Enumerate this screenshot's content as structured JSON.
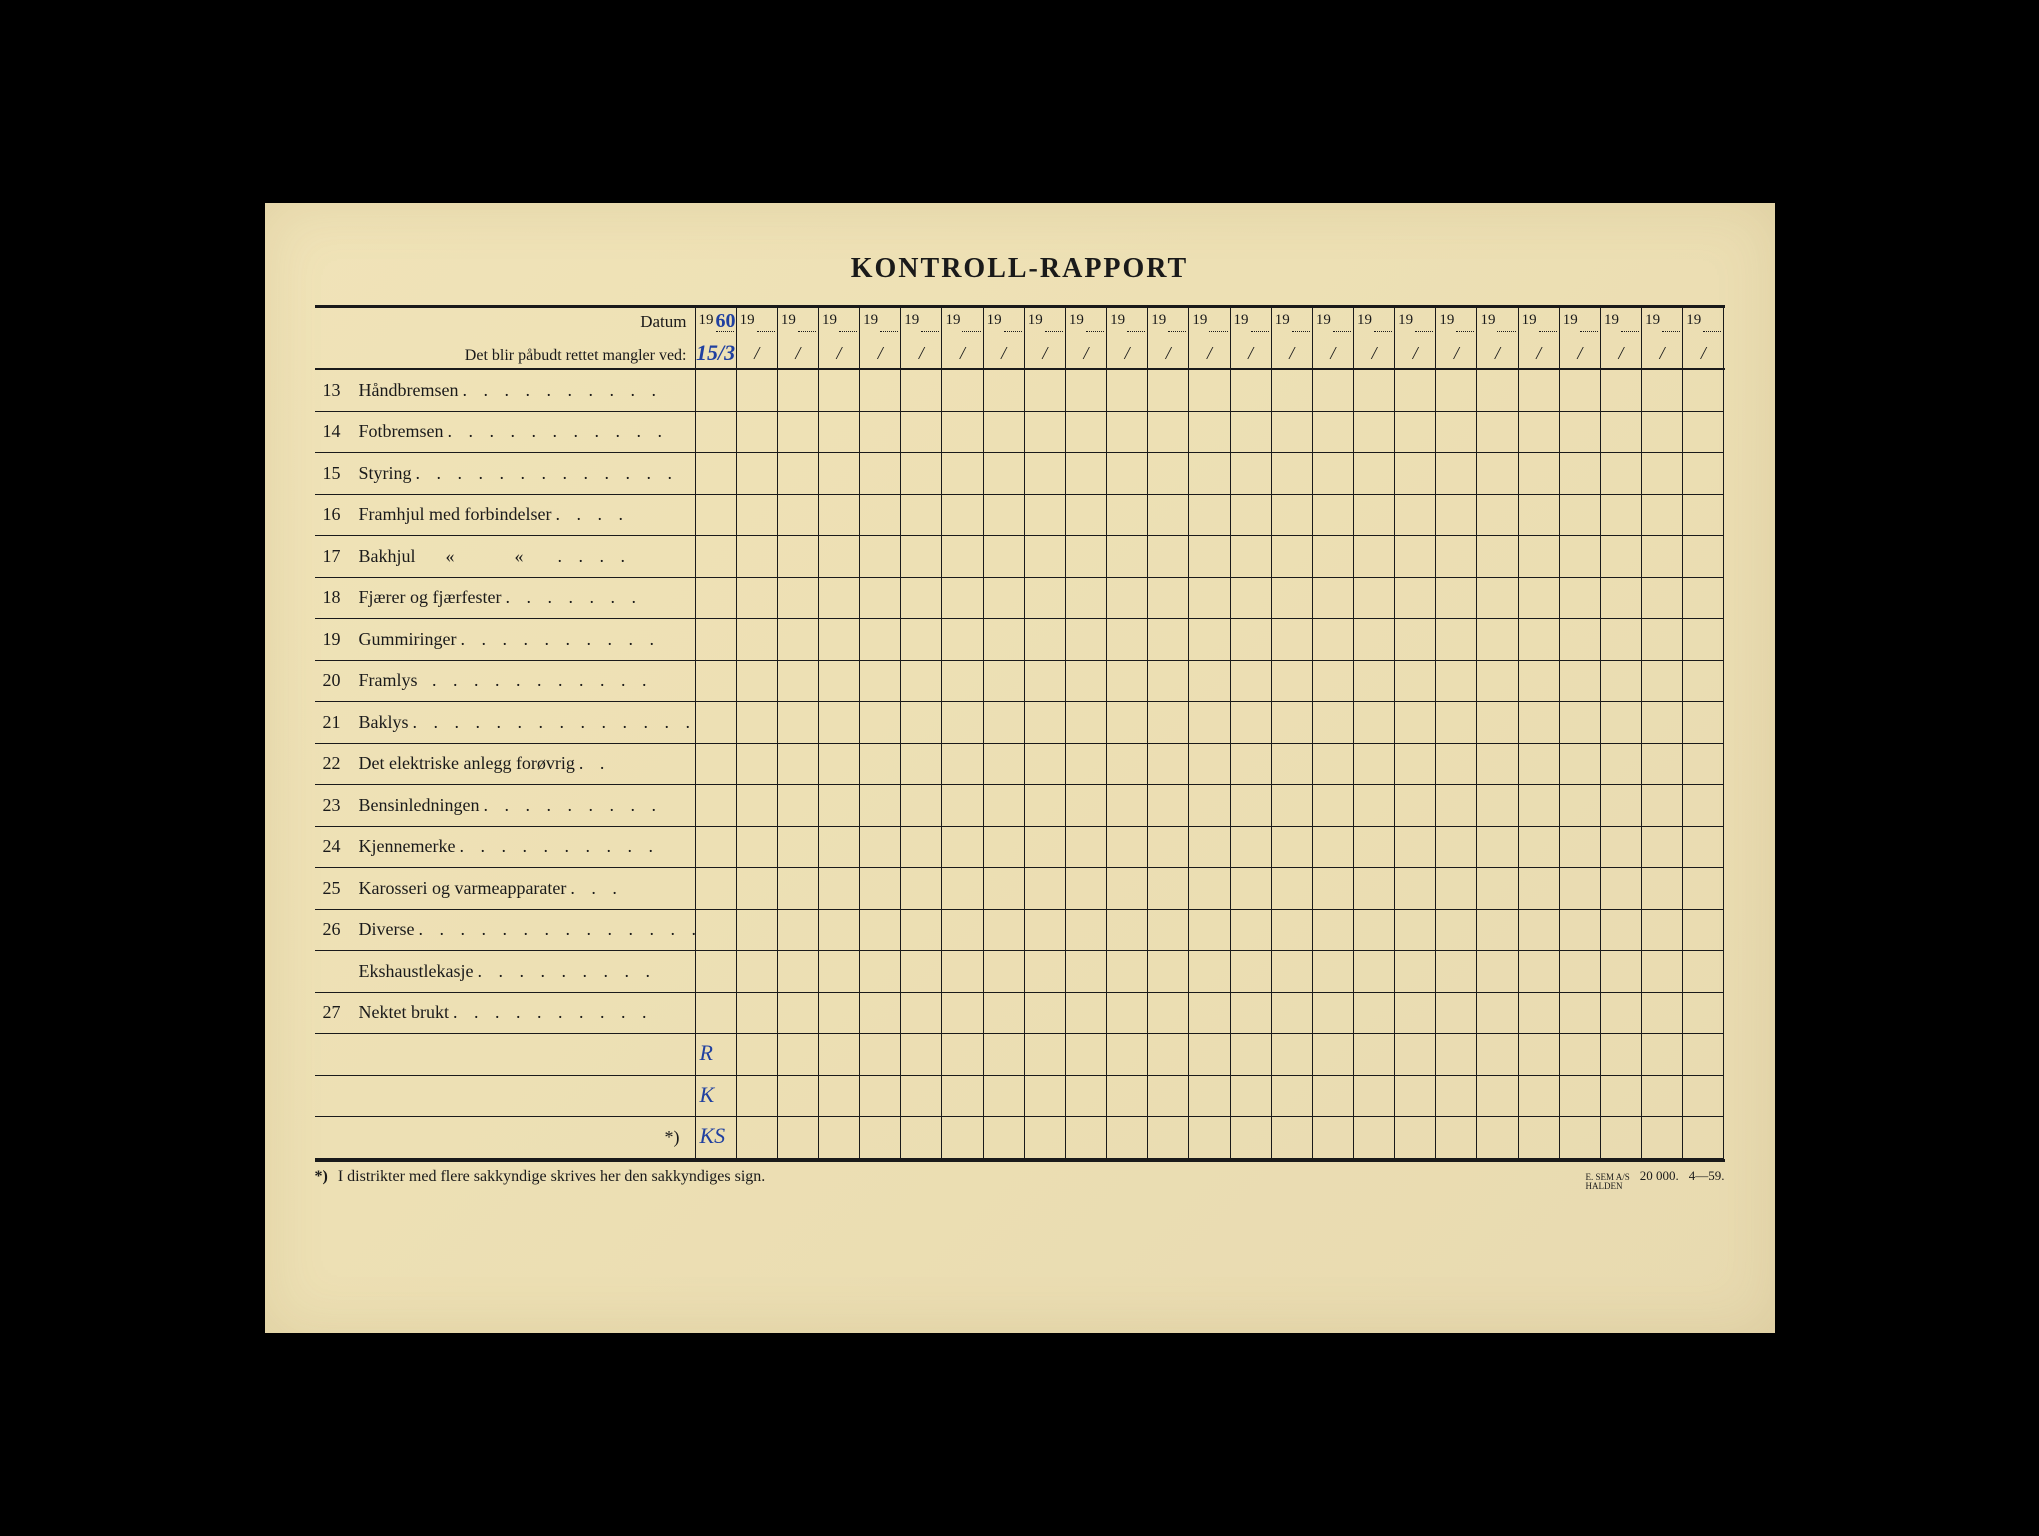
{
  "title": "KONTROLL-RAPPORT",
  "header": {
    "datum_label": "Datum",
    "mangler_label": "Det blir påbudt rettet mangler ved:",
    "year_prefix": "19",
    "num_year_cols": 25,
    "handwritten_year": "60",
    "handwritten_date": "15/3",
    "slash": "/"
  },
  "items": [
    {
      "num": "13",
      "label": "Håndbremsen",
      "dots": ". . . . . . . . . ."
    },
    {
      "num": "14",
      "label": "Fotbremsen",
      "dots": ". . . . . . . . . . ."
    },
    {
      "num": "15",
      "label": "Styring",
      "dots": ". . . . . . . . . . . . ."
    },
    {
      "num": "16",
      "label": "Framhjul med forbindelser",
      "dots": ". . . ."
    },
    {
      "num": "17",
      "label": "Bakhjul",
      "ditto1": "«",
      "ditto2": "«",
      "dots": ". . . ."
    },
    {
      "num": "18",
      "label": "Fjærer og fjærfester",
      "dots": ". . . . . . ."
    },
    {
      "num": "19",
      "label": "Gummiringer",
      "dots": ". . . . . . . . . ."
    },
    {
      "num": "20",
      "label": "Framlys",
      "dots": "  . . . . . . . . . . ."
    },
    {
      "num": "21",
      "label": "Baklys",
      "dots": ". . . . . . . . . . . . . ."
    },
    {
      "num": "22",
      "label": "Det elektriske anlegg forøvrig",
      "dots": ". ."
    },
    {
      "num": "23",
      "label": "Bensinledningen",
      "dots": ". . . . . . . . ."
    },
    {
      "num": "24",
      "label": "Kjennemerke",
      "dots": ". . . . . . . . . ."
    },
    {
      "num": "25",
      "label": "Karosseri og varmeapparater",
      "dots": ". . ."
    },
    {
      "num": "26",
      "label": "Diverse",
      "dots": ". . . . . . . . . . . . . ."
    },
    {
      "num": "",
      "label": "Ekshaustlekasje",
      "dots": ". . . . . . . . ."
    },
    {
      "num": "27",
      "label": "Nektet brukt",
      "dots": ". . . . . . . . . ."
    },
    {
      "num": "",
      "label": "",
      "dots": "",
      "sig": "R"
    },
    {
      "num": "",
      "label": "",
      "dots": "",
      "sig": "K"
    },
    {
      "num": "",
      "label": "",
      "asterisk": "*)",
      "dots": "",
      "sig": "KS"
    }
  ],
  "footnote": {
    "asterisk": "*)",
    "text": "I distrikter med flere sakkyndige skrives her den sakkyndiges sign.",
    "printer_line1": "E. SEM A/S",
    "printer_line2": "HALDEN",
    "print_run": "20 000.",
    "print_date": "4—59."
  },
  "colors": {
    "paper": "#ede0b4",
    "ink": "#1a1a1a",
    "handwriting": "#2040a0"
  }
}
